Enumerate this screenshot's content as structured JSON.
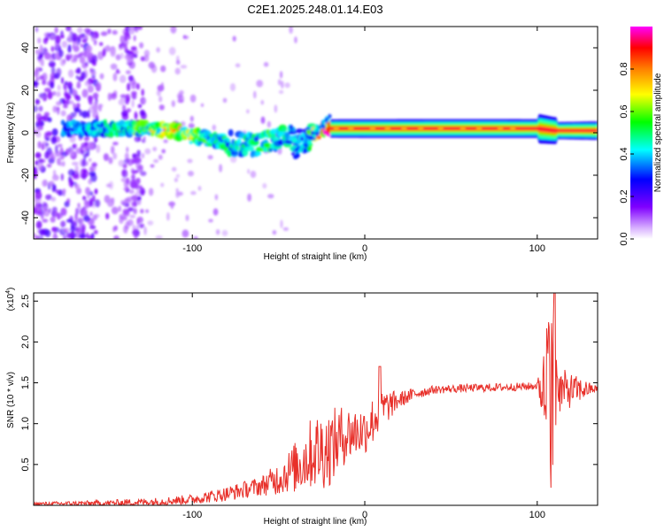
{
  "title": "C2E1.2025.248.01.14.E03",
  "chart_data": [
    {
      "type": "heatmap",
      "name": "spectrogram",
      "xlabel": "Height of straight line (km)",
      "ylabel": "Frequency (Hz)",
      "xlim": [
        -192,
        135
      ],
      "ylim": [
        -50,
        50
      ],
      "xticks": [
        -100,
        0,
        100
      ],
      "xtick_labels": [
        "-100",
        "0",
        "100"
      ],
      "yticks": [
        -40,
        -20,
        0,
        20,
        40
      ],
      "ytick_labels": [
        "-40",
        "-20",
        "0",
        "20",
        "40"
      ],
      "colorbar": {
        "label": "Normalized spectral amplitude",
        "range": [
          0.0,
          1.0
        ],
        "ticks": [
          0.0,
          0.2,
          0.4,
          0.6,
          0.8
        ],
        "tick_labels": [
          "0.0",
          "0.2",
          "0.4",
          "0.6",
          "0.8"
        ],
        "colormap": [
          "#ffffff",
          "#d9b3ff",
          "#8000ff",
          "#0000ff",
          "#00ffff",
          "#00ff00",
          "#ffff00",
          "#ff8000",
          "#ff0000",
          "#ff00ff"
        ]
      },
      "ridge": {
        "x": [
          -175,
          -150,
          -130,
          -110,
          -90,
          -70,
          -55,
          -45,
          -35,
          -25,
          -20,
          0,
          40,
          80,
          100,
          110,
          135
        ],
        "center_freq": [
          2,
          2,
          2,
          1,
          -3,
          -6,
          -4,
          -2,
          -4,
          2,
          2,
          2,
          2,
          2,
          2,
          1,
          1
        ],
        "amplitude": [
          0.35,
          0.45,
          0.55,
          0.7,
          0.5,
          0.45,
          0.5,
          0.45,
          0.35,
          0.8,
          0.85,
          0.9,
          0.95,
          0.95,
          0.9,
          0.6,
          0.9
        ]
      }
    },
    {
      "type": "line",
      "name": "snr",
      "xlabel": "Height of straight line (km)",
      "ylabel": "SNR (10 * v/v)",
      "y_scale_label": "(x10",
      "y_scale_exp": "4",
      "xlim": [
        -192,
        135
      ],
      "ylim": [
        0.0,
        2.6
      ],
      "xticks": [
        -100,
        0,
        100
      ],
      "xtick_labels": [
        "-100",
        "0",
        "100"
      ],
      "yticks": [
        0.5,
        1.0,
        1.5,
        2.0,
        2.5
      ],
      "ytick_labels": [
        "0.5",
        "1.0",
        "1.5",
        "2.0",
        "2.5"
      ],
      "color": "#e8302a",
      "envelope": {
        "x": [
          -192,
          -150,
          -120,
          -100,
          -80,
          -60,
          -50,
          -40,
          -30,
          -20,
          -12,
          0,
          10,
          20,
          30,
          40,
          60,
          80,
          95,
          100,
          105,
          108,
          110,
          112,
          120,
          135
        ],
        "y": [
          0.02,
          0.03,
          0.05,
          0.08,
          0.15,
          0.25,
          0.35,
          0.5,
          0.7,
          0.75,
          0.9,
          0.95,
          1.2,
          1.3,
          1.38,
          1.42,
          1.44,
          1.45,
          1.46,
          1.47,
          1.45,
          1.2,
          1.4,
          1.43,
          1.43,
          1.43
        ]
      },
      "noise": {
        "x": [
          -192,
          -100,
          -60,
          -45,
          -35,
          -25,
          -18,
          -10,
          -2,
          5,
          10,
          20,
          40,
          100,
          103,
          106,
          108,
          110,
          112,
          135
        ],
        "amp": [
          0.02,
          0.06,
          0.12,
          0.25,
          0.4,
          0.5,
          0.45,
          0.35,
          0.3,
          0.3,
          0.25,
          0.1,
          0.05,
          0.05,
          0.4,
          0.9,
          1.1,
          1.0,
          0.3,
          0.03
        ]
      }
    }
  ]
}
